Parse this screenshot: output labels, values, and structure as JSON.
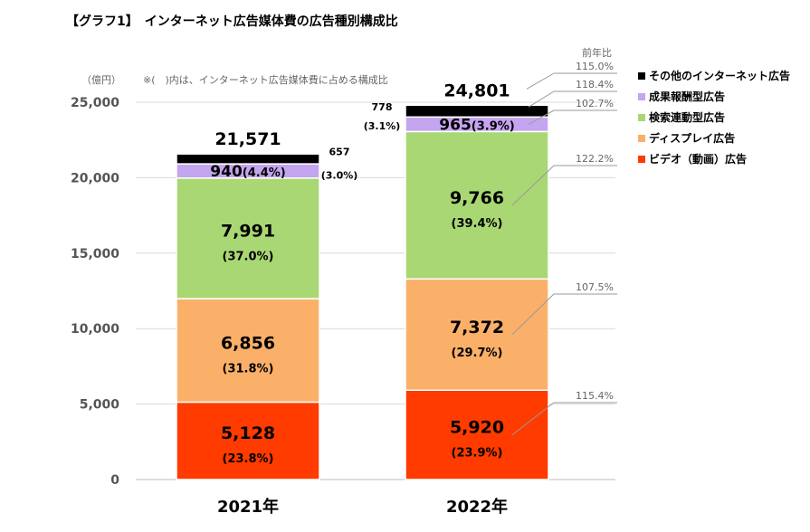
{
  "title": "【グラフ1】　インターネット広告媒体費の広告種別構成比",
  "unit_label": "（億円）",
  "note": "※(　)内は、インターネット広告媒体費に占める構成比",
  "yoy_header": "前年比",
  "chart_data": {
    "type": "bar",
    "stacked": true,
    "categories": [
      "2021年",
      "2022年"
    ],
    "ylim": [
      0,
      25000
    ],
    "yticks": [
      "0",
      "5,000",
      "10,000",
      "15,000",
      "20,000",
      "25,000"
    ],
    "ytick_values": [
      0,
      5000,
      10000,
      15000,
      20000,
      25000
    ],
    "legend_position": "right",
    "grid": true,
    "series": [
      {
        "name": "ビデオ（動画）広告",
        "color": "#ff3b00",
        "values": [
          5128,
          5920
        ],
        "labels": [
          "5,128",
          "5,920"
        ],
        "shares": [
          "(23.8%)",
          "(23.9%)"
        ],
        "yoy": "115.4%"
      },
      {
        "name": "ディスプレイ広告",
        "color": "#fbb06a",
        "values": [
          6856,
          7372
        ],
        "labels": [
          "6,856",
          "7,372"
        ],
        "shares": [
          "(31.8%)",
          "(29.7%)"
        ],
        "yoy": "107.5%"
      },
      {
        "name": "検索連動型広告",
        "color": "#a9d774",
        "values": [
          7991,
          9766
        ],
        "labels": [
          "7,991",
          "9,766"
        ],
        "shares": [
          "(37.0%)",
          "(39.4%)"
        ],
        "yoy": "122.2%"
      },
      {
        "name": "成果報酬型広告",
        "color": "#c4a5f0",
        "values": [
          940,
          965
        ],
        "labels": [
          "940",
          "965"
        ],
        "shares": [
          "(4.4%)",
          "(3.9%)"
        ],
        "yoy": "102.7%"
      },
      {
        "name": "その他のインターネット広告",
        "color": "#000000",
        "values": [
          657,
          778
        ],
        "labels": [
          "657",
          "778"
        ],
        "shares": [
          "(3.0%)",
          "(3.1%)"
        ],
        "yoy": "118.4%"
      }
    ],
    "totals": [
      "21,571",
      "24,801"
    ],
    "total_yoy": "115.0%"
  }
}
